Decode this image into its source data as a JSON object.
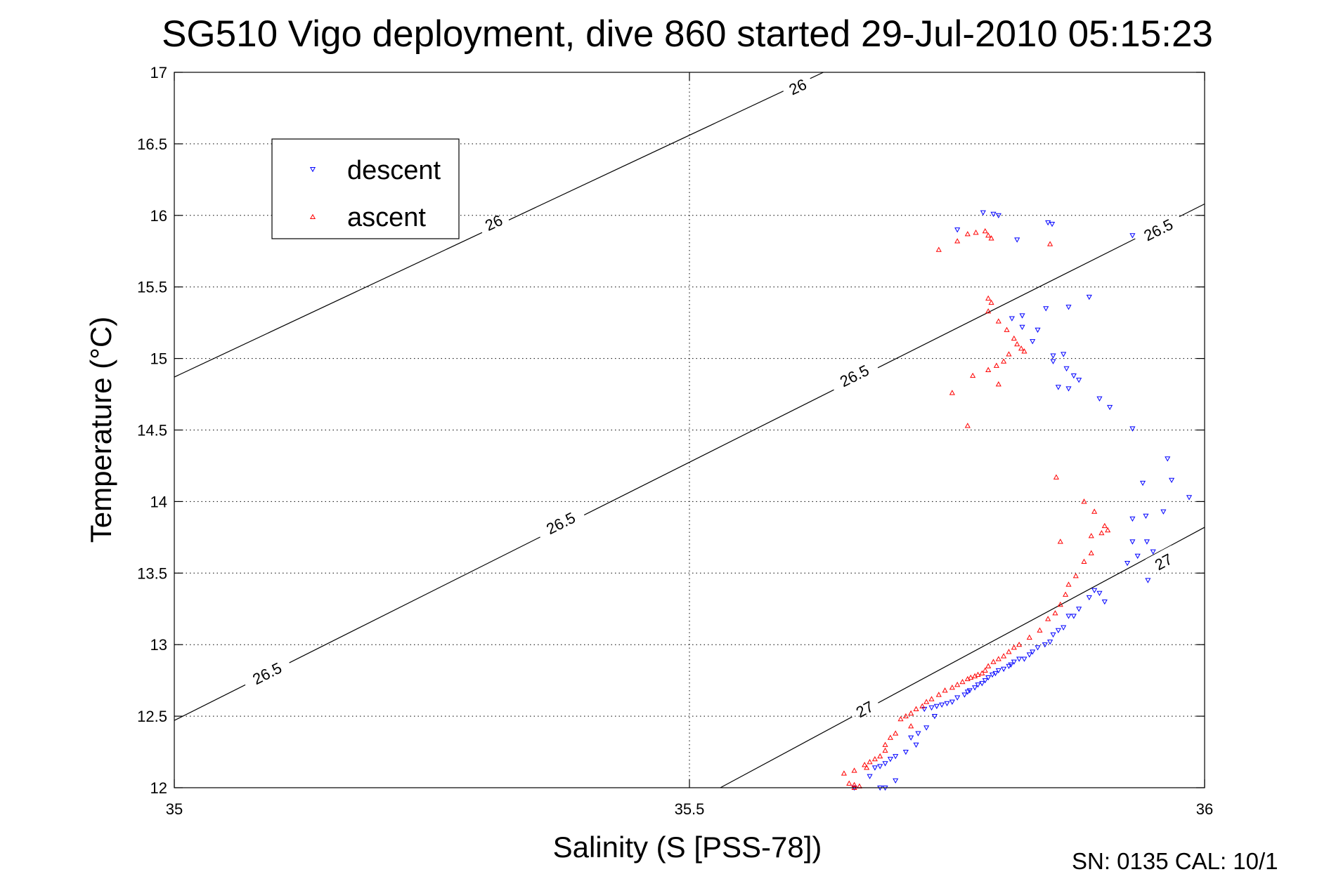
{
  "chart_data": {
    "type": "scatter",
    "title": "SG510 Vigo deployment, dive 860 started 29-Jul-2010 05:15:23",
    "xlabel": "Salinity (S [PSS-78])",
    "ylabel": "Temperature (°C)",
    "xlim": [
      35,
      36
    ],
    "ylim": [
      12,
      17
    ],
    "xticks": [
      35,
      35.5,
      36
    ],
    "yticks": [
      12,
      12.5,
      13,
      13.5,
      14,
      14.5,
      15,
      15.5,
      16,
      16.5,
      17
    ],
    "grid": true,
    "legend_position": "top-left",
    "footer": "SN: 0135  CAL: 10/1",
    "isopycnals": [
      {
        "sigma": 26,
        "x": [
          35,
          35.63
        ],
        "y": [
          14.87,
          17.0
        ],
        "labels": [
          {
            "text": "26",
            "x": 35.31,
            "y": 15.95
          },
          {
            "text": "26",
            "x": 35.605,
            "y": 16.9
          }
        ]
      },
      {
        "sigma": 26.5,
        "x": [
          35,
          36
        ],
        "y": [
          12.47,
          16.08
        ],
        "labels": [
          {
            "text": "26.5",
            "x": 35.09,
            "y": 12.8
          },
          {
            "text": "26.5",
            "x": 35.375,
            "y": 13.85
          },
          {
            "text": "26.5",
            "x": 35.66,
            "y": 14.88
          },
          {
            "text": "26.5",
            "x": 35.955,
            "y": 15.9
          }
        ]
      },
      {
        "sigma": 27,
        "x": [
          35.53,
          36
        ],
        "y": [
          12.0,
          13.82
        ],
        "labels": [
          {
            "text": "27",
            "x": 35.67,
            "y": 12.55
          },
          {
            "text": "27",
            "x": 35.96,
            "y": 13.58
          }
        ]
      }
    ],
    "series": [
      {
        "name": "descent",
        "color": "#0000ff",
        "marker": "triangle-down",
        "points": [
          [
            35.76,
            15.9
          ],
          [
            35.785,
            16.02
          ],
          [
            35.795,
            16.01
          ],
          [
            35.8,
            16.0
          ],
          [
            35.818,
            15.83
          ],
          [
            35.848,
            15.95
          ],
          [
            35.852,
            15.94
          ],
          [
            35.93,
            15.86
          ],
          [
            35.813,
            15.28
          ],
          [
            35.823,
            15.3
          ],
          [
            35.823,
            15.22
          ],
          [
            35.838,
            15.2
          ],
          [
            35.846,
            15.35
          ],
          [
            35.868,
            15.36
          ],
          [
            35.888,
            15.43
          ],
          [
            35.833,
            15.12
          ],
          [
            35.853,
            15.02
          ],
          [
            35.863,
            15.03
          ],
          [
            35.853,
            14.98
          ],
          [
            35.866,
            14.93
          ],
          [
            35.873,
            14.88
          ],
          [
            35.878,
            14.85
          ],
          [
            35.858,
            14.8
          ],
          [
            35.868,
            14.79
          ],
          [
            35.898,
            14.72
          ],
          [
            35.908,
            14.66
          ],
          [
            35.93,
            14.51
          ],
          [
            35.964,
            14.3
          ],
          [
            35.968,
            14.15
          ],
          [
            35.94,
            14.13
          ],
          [
            35.985,
            14.03
          ],
          [
            35.96,
            13.93
          ],
          [
            35.93,
            13.88
          ],
          [
            35.943,
            13.9
          ],
          [
            35.93,
            13.72
          ],
          [
            35.944,
            13.72
          ],
          [
            35.95,
            13.65
          ],
          [
            35.935,
            13.62
          ],
          [
            35.925,
            13.57
          ],
          [
            35.945,
            13.45
          ],
          [
            35.893,
            13.38
          ],
          [
            35.898,
            13.36
          ],
          [
            35.888,
            13.33
          ],
          [
            35.903,
            13.3
          ],
          [
            35.878,
            13.25
          ],
          [
            35.873,
            13.2
          ],
          [
            35.868,
            13.2
          ],
          [
            35.863,
            13.12
          ],
          [
            35.858,
            13.1
          ],
          [
            35.853,
            13.07
          ],
          [
            35.85,
            13.02
          ],
          [
            35.845,
            13.0
          ],
          [
            35.838,
            12.98
          ],
          [
            35.833,
            12.95
          ],
          [
            35.83,
            12.93
          ],
          [
            35.825,
            12.9
          ],
          [
            35.82,
            12.9
          ],
          [
            35.815,
            12.88
          ],
          [
            35.812,
            12.86
          ],
          [
            35.81,
            12.85
          ],
          [
            35.805,
            12.83
          ],
          [
            35.8,
            12.82
          ],
          [
            35.797,
            12.8
          ],
          [
            35.794,
            12.79
          ],
          [
            35.79,
            12.77
          ],
          [
            35.787,
            12.75
          ],
          [
            35.784,
            12.73
          ],
          [
            35.78,
            12.72
          ],
          [
            35.777,
            12.7
          ],
          [
            35.772,
            12.68
          ],
          [
            35.77,
            12.67
          ],
          [
            35.767,
            12.65
          ],
          [
            35.76,
            12.63
          ],
          [
            35.755,
            12.6
          ],
          [
            35.75,
            12.59
          ],
          [
            35.745,
            12.58
          ],
          [
            35.74,
            12.57
          ],
          [
            35.735,
            12.56
          ],
          [
            35.728,
            12.55
          ],
          [
            35.738,
            12.5
          ],
          [
            35.73,
            12.42
          ],
          [
            35.722,
            12.38
          ],
          [
            35.715,
            12.35
          ],
          [
            35.72,
            12.3
          ],
          [
            35.71,
            12.25
          ],
          [
            35.7,
            12.22
          ],
          [
            35.695,
            12.2
          ],
          [
            35.69,
            12.17
          ],
          [
            35.685,
            12.15
          ],
          [
            35.68,
            12.14
          ],
          [
            35.675,
            12.08
          ],
          [
            35.7,
            12.05
          ],
          [
            35.66,
            12.0
          ],
          [
            35.685,
            12.0
          ],
          [
            35.69,
            12.0
          ]
        ]
      },
      {
        "name": "ascent",
        "color": "#ff0000",
        "marker": "triangle-up",
        "points": [
          [
            35.742,
            15.76
          ],
          [
            35.76,
            15.82
          ],
          [
            35.77,
            15.87
          ],
          [
            35.778,
            15.88
          ],
          [
            35.787,
            15.89
          ],
          [
            35.79,
            15.86
          ],
          [
            35.793,
            15.84
          ],
          [
            35.85,
            15.8
          ],
          [
            35.79,
            15.42
          ],
          [
            35.793,
            15.39
          ],
          [
            35.79,
            15.33
          ],
          [
            35.8,
            15.26
          ],
          [
            35.808,
            15.2
          ],
          [
            35.815,
            15.14
          ],
          [
            35.818,
            15.1
          ],
          [
            35.822,
            15.07
          ],
          [
            35.825,
            15.05
          ],
          [
            35.81,
            15.03
          ],
          [
            35.805,
            14.98
          ],
          [
            35.798,
            14.95
          ],
          [
            35.79,
            14.92
          ],
          [
            35.8,
            14.82
          ],
          [
            35.775,
            14.88
          ],
          [
            35.755,
            14.76
          ],
          [
            35.77,
            14.53
          ],
          [
            35.856,
            14.17
          ],
          [
            35.883,
            14.0
          ],
          [
            35.893,
            13.93
          ],
          [
            35.903,
            13.83
          ],
          [
            35.906,
            13.8
          ],
          [
            35.9,
            13.78
          ],
          [
            35.89,
            13.76
          ],
          [
            35.86,
            13.72
          ],
          [
            35.89,
            13.64
          ],
          [
            35.883,
            13.58
          ],
          [
            35.875,
            13.48
          ],
          [
            35.868,
            13.42
          ],
          [
            35.865,
            13.35
          ],
          [
            35.86,
            13.28
          ],
          [
            35.855,
            13.22
          ],
          [
            35.848,
            13.18
          ],
          [
            35.84,
            13.1
          ],
          [
            35.83,
            13.05
          ],
          [
            35.82,
            13.0
          ],
          [
            35.815,
            12.98
          ],
          [
            35.81,
            12.95
          ],
          [
            35.805,
            12.92
          ],
          [
            35.8,
            12.9
          ],
          [
            35.795,
            12.88
          ],
          [
            35.79,
            12.85
          ],
          [
            35.787,
            12.82
          ],
          [
            35.784,
            12.8
          ],
          [
            35.78,
            12.79
          ],
          [
            35.777,
            12.78
          ],
          [
            35.773,
            12.77
          ],
          [
            35.77,
            12.76
          ],
          [
            35.765,
            12.74
          ],
          [
            35.76,
            12.72
          ],
          [
            35.755,
            12.7
          ],
          [
            35.748,
            12.68
          ],
          [
            35.742,
            12.65
          ],
          [
            35.735,
            12.62
          ],
          [
            35.73,
            12.6
          ],
          [
            35.726,
            12.57
          ],
          [
            35.72,
            12.55
          ],
          [
            35.715,
            12.52
          ],
          [
            35.71,
            12.5
          ],
          [
            35.705,
            12.48
          ],
          [
            35.715,
            12.43
          ],
          [
            35.7,
            12.38
          ],
          [
            35.695,
            12.35
          ],
          [
            35.69,
            12.3
          ],
          [
            35.69,
            12.26
          ],
          [
            35.685,
            12.22
          ],
          [
            35.68,
            12.2
          ],
          [
            35.675,
            12.18
          ],
          [
            35.67,
            12.16
          ],
          [
            35.672,
            12.14
          ],
          [
            35.66,
            12.12
          ],
          [
            35.65,
            12.1
          ],
          [
            35.655,
            12.03
          ],
          [
            35.66,
            12.02
          ],
          [
            35.665,
            12.01
          ],
          [
            35.66,
            12.0
          ]
        ]
      }
    ]
  }
}
